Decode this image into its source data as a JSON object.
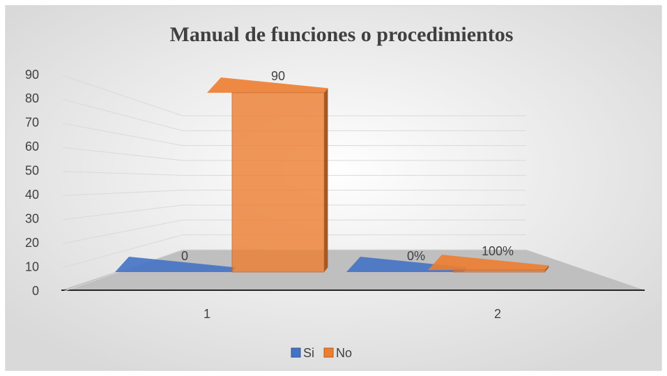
{
  "chart_data": {
    "type": "bar3d",
    "title": "Manual de funciones o procedimientos",
    "categories": [
      "1",
      "2"
    ],
    "series": [
      {
        "name": "Si",
        "color": "#4472c4",
        "values": [
          0,
          0
        ],
        "value_labels": [
          "0",
          "0%"
        ]
      },
      {
        "name": "No",
        "color": "#ed7d31",
        "values": [
          90,
          1
        ],
        "value_labels": [
          "90",
          "100%"
        ]
      }
    ],
    "ylim": [
      0,
      90
    ],
    "yticks": [
      0,
      10,
      20,
      30,
      40,
      50,
      60,
      70,
      80,
      90
    ],
    "grid": true,
    "legend": "bottom"
  }
}
